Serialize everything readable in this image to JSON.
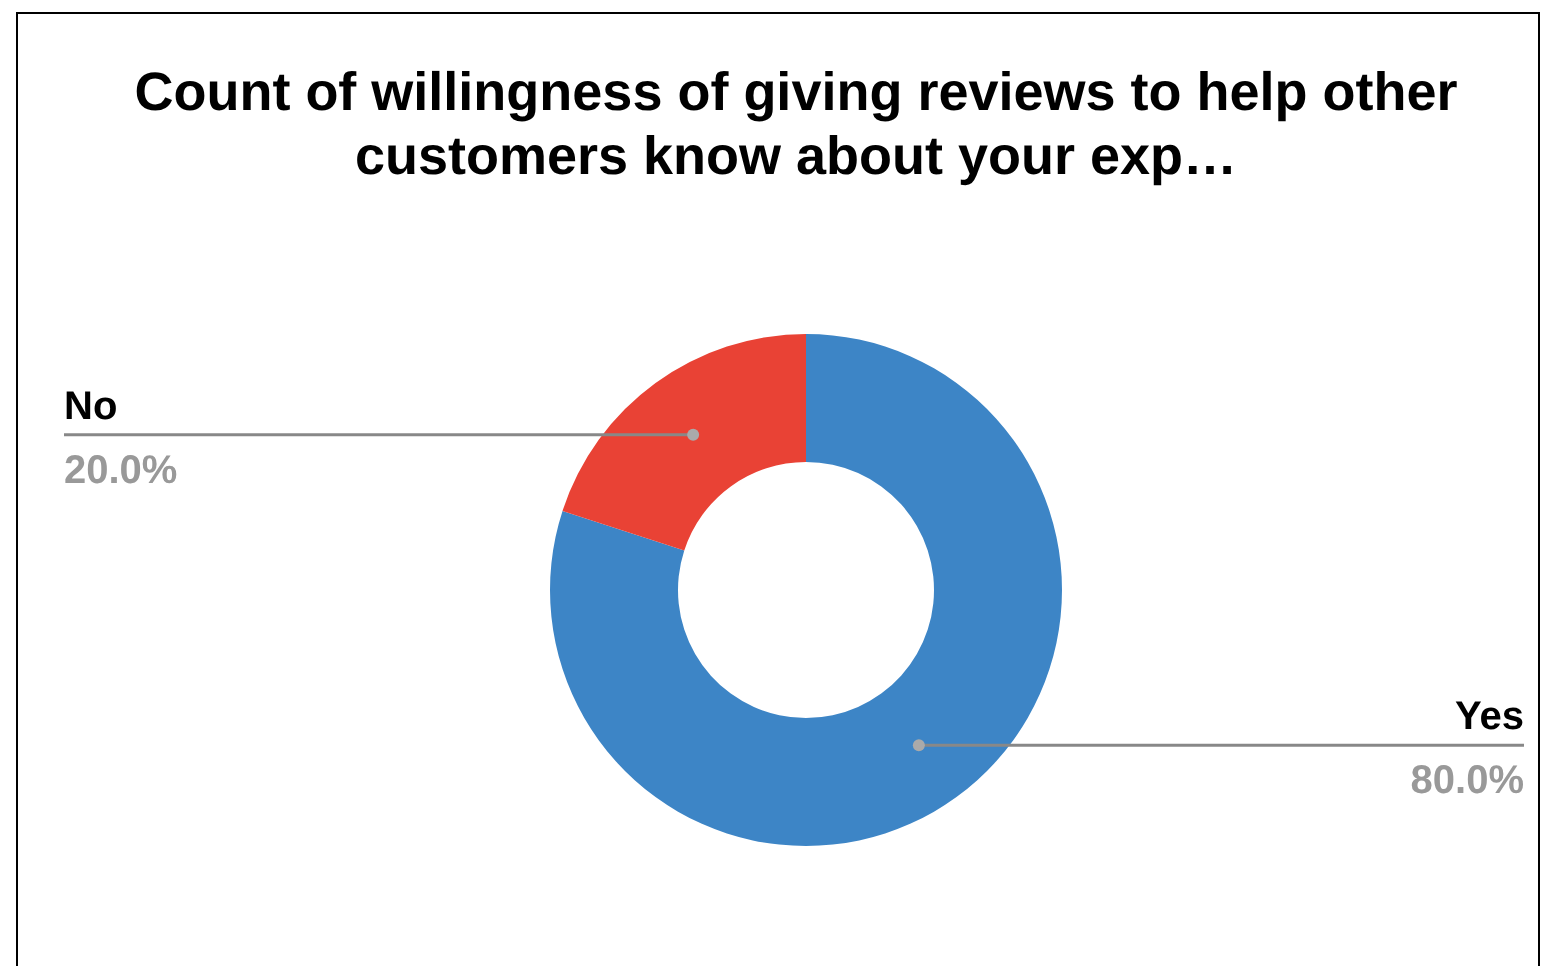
{
  "chart_data": {
    "type": "donut",
    "title": "Count of willingness of giving reviews to help other customers know about your exp…",
    "categories": [
      "Yes",
      "No"
    ],
    "values": [
      80,
      20
    ],
    "colors": [
      "#3d85c6",
      "#e94235"
    ],
    "value_labels": [
      "80.0%",
      "20.0%"
    ],
    "legend": false
  }
}
